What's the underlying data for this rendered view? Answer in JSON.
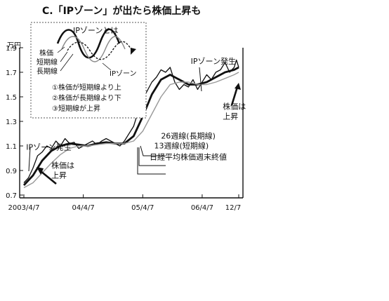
{
  "chart_data": {
    "type": "line",
    "title": "C.「IPゾーン」が出たら株価上昇も",
    "unit_label": "万円",
    "ylim": [
      0.7,
      1.9
    ],
    "y_ticks": [
      "0.7",
      "0.9",
      "1.1",
      "1.3",
      "1.5",
      "1.7",
      "1.9"
    ],
    "x_tick_labels": [
      "2003/4/7",
      "04/4/7",
      "05/4/7",
      "06/4/7",
      "12/7"
    ],
    "grid": false,
    "series": [
      {
        "name": "日経平均株価週末終値",
        "x": [
          0,
          4,
          8,
          12,
          16,
          20,
          24,
          28,
          32,
          36,
          40,
          44,
          48,
          52,
          56,
          60,
          64,
          68,
          72,
          76,
          80,
          84,
          88,
          92,
          96,
          100,
          104,
          108,
          112,
          116,
          120,
          124,
          128,
          132,
          136,
          140,
          144,
          148,
          152,
          156,
          160,
          164,
          168,
          172,
          176,
          180,
          184,
          186,
          188
        ],
        "y": [
          0.8,
          0.84,
          0.92,
          1.02,
          1.05,
          1.1,
          1.08,
          1.14,
          1.1,
          1.16,
          1.12,
          1.13,
          1.08,
          1.1,
          1.12,
          1.14,
          1.11,
          1.14,
          1.16,
          1.14,
          1.12,
          1.1,
          1.14,
          1.2,
          1.26,
          1.38,
          1.48,
          1.55,
          1.62,
          1.66,
          1.72,
          1.7,
          1.74,
          1.62,
          1.56,
          1.6,
          1.58,
          1.64,
          1.56,
          1.62,
          1.68,
          1.64,
          1.7,
          1.72,
          1.78,
          1.7,
          1.74,
          1.8,
          1.74
        ]
      },
      {
        "name": "13週線(短期線)",
        "x": [
          0,
          8,
          16,
          24,
          32,
          40,
          48,
          56,
          64,
          72,
          80,
          88,
          96,
          104,
          112,
          120,
          128,
          136,
          144,
          152,
          160,
          168,
          176,
          184,
          188
        ],
        "y": [
          0.78,
          0.86,
          0.98,
          1.06,
          1.1,
          1.12,
          1.11,
          1.1,
          1.12,
          1.13,
          1.12,
          1.12,
          1.18,
          1.34,
          1.52,
          1.64,
          1.68,
          1.64,
          1.6,
          1.6,
          1.62,
          1.66,
          1.7,
          1.72,
          1.74
        ]
      },
      {
        "name": "26週線(長期線)",
        "x": [
          0,
          8,
          16,
          24,
          32,
          40,
          48,
          56,
          64,
          72,
          80,
          88,
          96,
          104,
          112,
          120,
          128,
          136,
          144,
          152,
          160,
          168,
          176,
          184,
          188
        ],
        "y": [
          0.76,
          0.8,
          0.88,
          0.96,
          1.03,
          1.08,
          1.1,
          1.1,
          1.11,
          1.12,
          1.12,
          1.12,
          1.14,
          1.22,
          1.36,
          1.5,
          1.6,
          1.62,
          1.62,
          1.6,
          1.6,
          1.62,
          1.65,
          1.68,
          1.7
        ]
      }
    ],
    "annotations": [
      {
        "text": "IPゾーン発生",
        "x": 2,
        "y": 1.07
      },
      {
        "text": "株価は",
        "x": 24,
        "y": 0.92
      },
      {
        "text": "上昇",
        "x": 24,
        "y": 0.84
      },
      {
        "text": "IPゾーン発生",
        "x": 146,
        "y": 1.77
      },
      {
        "text": "株価は",
        "x": 174,
        "y": 1.4
      },
      {
        "text": "上昇",
        "x": 174,
        "y": 1.32
      },
      {
        "text": "26週線(長期線)",
        "x": 120,
        "y": 1.16
      },
      {
        "text": "13週線(短期線)",
        "x": 114,
        "y": 1.08
      },
      {
        "text": "日経平均株価週末終値",
        "x": 110,
        "y": 0.99
      }
    ]
  },
  "inset": {
    "title": "IPゾーンとは",
    "label_price": "株価",
    "label_short": "短期線",
    "label_long": "長期線",
    "label_zone": "IPゾーン",
    "conditions": [
      "①株価が短期線より上",
      "②株価が長期線より下",
      "③短期線が上昇"
    ]
  }
}
